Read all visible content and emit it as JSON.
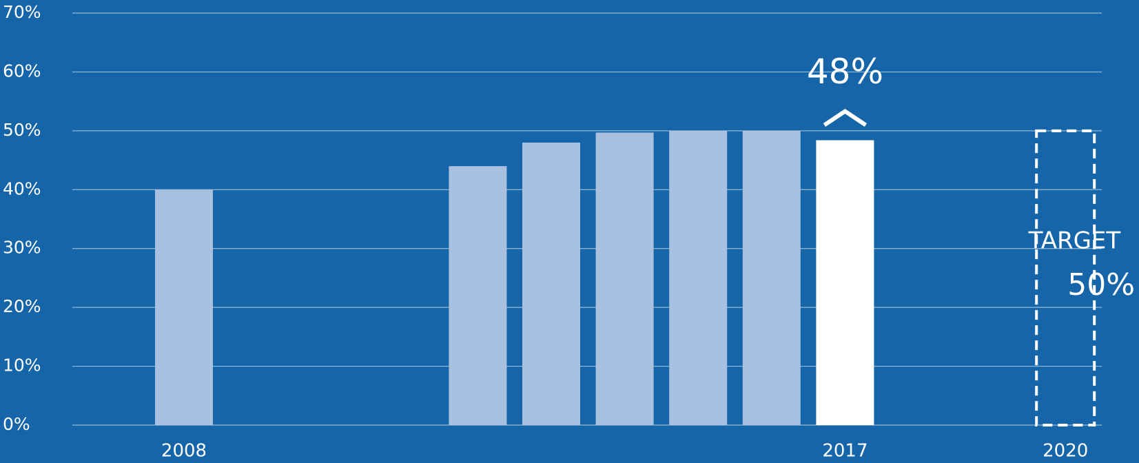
{
  "chart_data": {
    "type": "bar",
    "categories": [
      "2008",
      null,
      null,
      null,
      null,
      null,
      null,
      null,
      null,
      "2017",
      null,
      null,
      "2020"
    ],
    "values": [
      40,
      null,
      null,
      null,
      44,
      48,
      49.7,
      50,
      50,
      48.4,
      null,
      null,
      50
    ],
    "value_labels": [
      null,
      null,
      null,
      null,
      null,
      null,
      null,
      null,
      null,
      "48%",
      null,
      null,
      "50%"
    ],
    "colors": [
      "#a9c1e1",
      null,
      null,
      null,
      "#a9c1e1",
      "#a9c1e1",
      "#a9c1e1",
      "#a9c1e1",
      "#a9c1e1",
      "#ffffff",
      null,
      null,
      "#ffffff"
    ],
    "styles": [
      "fill",
      null,
      null,
      null,
      "fill",
      "fill",
      "fill",
      "fill",
      "fill",
      "fill",
      null,
      null,
      "dashed"
    ],
    "annotations": [
      "TARGET"
    ],
    "ylim": [
      0,
      70
    ],
    "yticks": [
      {
        "value": 0,
        "label": "0%"
      },
      {
        "value": 10,
        "label": "10%"
      },
      {
        "value": 20,
        "label": "20%"
      },
      {
        "value": 30,
        "label": "30%"
      },
      {
        "value": 40,
        "label": "40%"
      },
      {
        "value": 50,
        "label": "50%"
      },
      {
        "value": 60,
        "label": "60%"
      },
      {
        "value": 70,
        "label": "70%"
      }
    ],
    "grid": true
  }
}
